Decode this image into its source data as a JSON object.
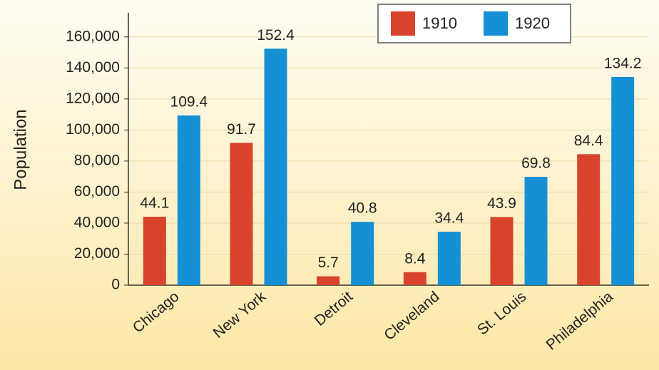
{
  "chart_data": {
    "type": "bar",
    "y_label": "Population",
    "categories": [
      "Chicago",
      "New York",
      "Detroit",
      "Cleveland",
      "St. Louis",
      "Philadelphia"
    ],
    "series": [
      {
        "name": "1910",
        "color": "#d9432c",
        "values": [
          44100,
          91700,
          5700,
          8400,
          43900,
          84400
        ],
        "value_labels": [
          "44.1",
          "91.7",
          "5.7",
          "8.4",
          "43.9",
          "84.4"
        ]
      },
      {
        "name": "1920",
        "color": "#1590d4",
        "values": [
          109400,
          152400,
          40800,
          34400,
          69800,
          134200
        ],
        "value_labels": [
          "109.4",
          "152.4",
          "40.8",
          "34.4",
          "69.8",
          "134.2"
        ]
      }
    ],
    "ylim": [
      0,
      170000
    ],
    "yticks": [
      0,
      {
        "value": 20000,
        "label": "20,000"
      },
      {
        "value": 40000,
        "label": "40,000"
      },
      {
        "value": 60000,
        "label": "60,000"
      },
      {
        "value": 80000,
        "label": "80,000"
      },
      {
        "value": 100000,
        "label": "100,000"
      },
      {
        "value": 120000,
        "label": "120,000"
      },
      {
        "value": 140000,
        "label": "140,000"
      },
      {
        "value": 160000,
        "label": "160,000"
      }
    ],
    "grid": true,
    "legend": "top-right"
  }
}
